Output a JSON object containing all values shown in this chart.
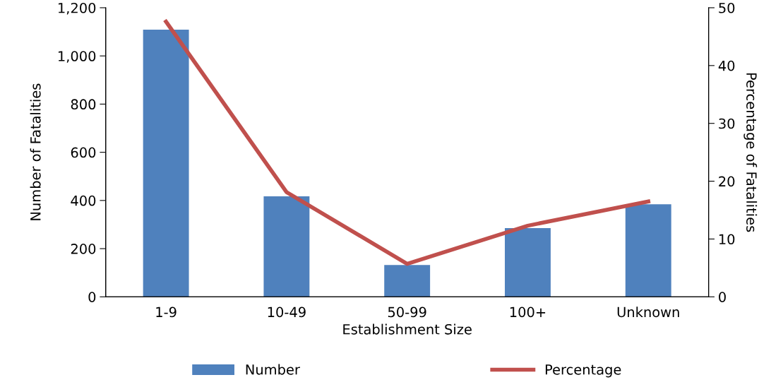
{
  "chart_data": {
    "type": "bar",
    "xlabel": "Establishment Size",
    "ylabel": "Number of Fatalities",
    "y2label": "Percentage of Fatalities",
    "categories": [
      "1-9",
      "10-49",
      "50-99",
      "100+",
      "Unknown"
    ],
    "series": [
      {
        "name": "Number",
        "color": "#4f81bd",
        "values": [
          1109,
          417,
          132,
          285,
          384
        ]
      },
      {
        "name": "Percentage",
        "type": "line",
        "axis": "y2",
        "color": "#c0504d",
        "values": [
          47.6,
          18.1,
          5.7,
          12.3,
          16.5
        ]
      }
    ],
    "ylim": [
      0,
      1200
    ],
    "yticks": [
      0,
      {
        "value": 200,
        "label": "200"
      },
      {
        "value": 400,
        "label": "400"
      },
      {
        "value": 600,
        "label": "600"
      },
      {
        "value": 800,
        "label": "800"
      },
      {
        "value": 1000,
        "label": "1,000"
      },
      {
        "value": 1200,
        "label": "1,200"
      }
    ],
    "y2lim": [
      0,
      50
    ],
    "y2ticks": [
      0,
      10,
      20,
      30,
      40,
      50
    ],
    "grid": false,
    "legend": "bottom",
    "marker": "none",
    "line_style": "solid"
  }
}
